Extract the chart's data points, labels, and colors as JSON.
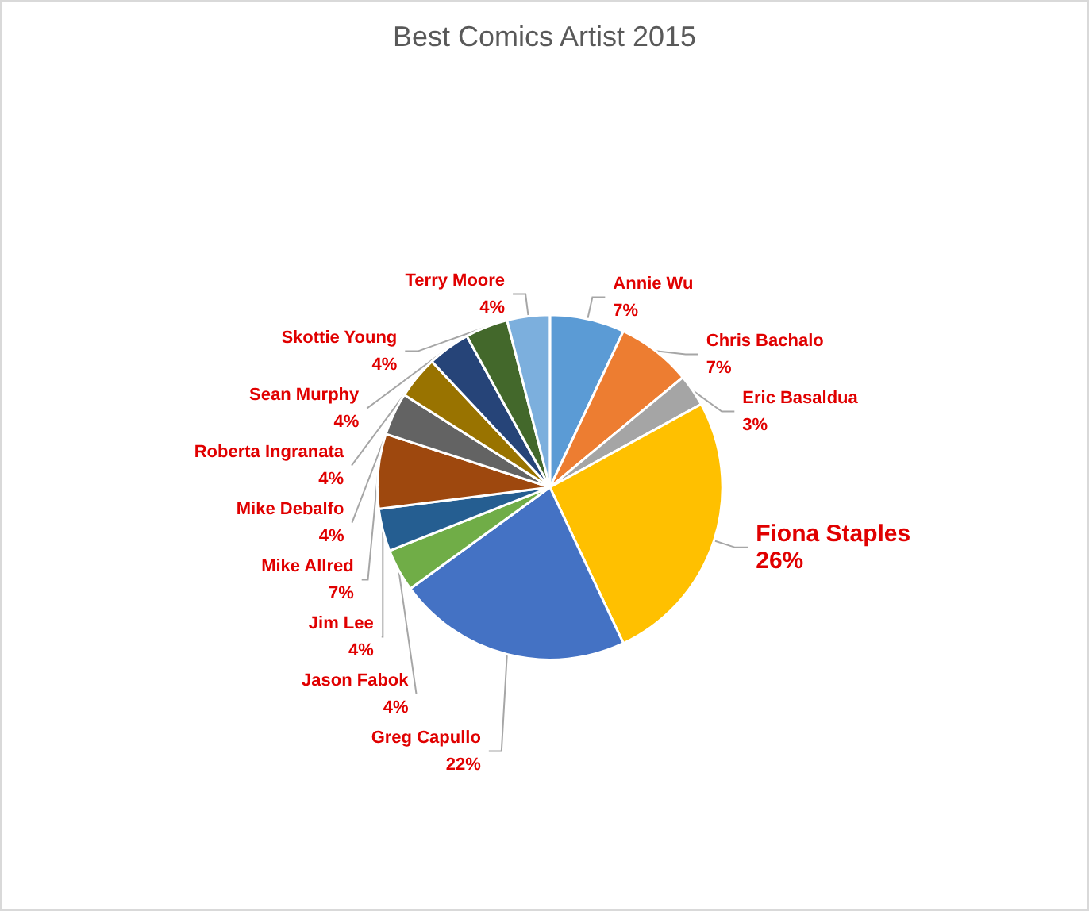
{
  "chart_data": {
    "type": "pie",
    "title": "Best Comics Artist 2015",
    "categories": [
      "Annie Wu",
      "Chris Bachalo",
      "Eric Basaldua",
      "Fiona Staples",
      "Greg Capullo",
      "Jason Fabok",
      "Jim Lee",
      "Mike Allred",
      "Mike Debalfo",
      "Roberta Ingranata",
      "Sean Murphy",
      "Skottie Young",
      "Terry Moore"
    ],
    "values": [
      7,
      7,
      3,
      26,
      22,
      4,
      4,
      7,
      4,
      4,
      4,
      4,
      4
    ],
    "value_labels": [
      "7%",
      "7%",
      "3%",
      "26%",
      "22%",
      "4%",
      "4%",
      "7%",
      "4%",
      "4%",
      "4%",
      "4%",
      "4%"
    ],
    "colors": [
      "#5b9bd5",
      "#ed7d31",
      "#a5a5a5",
      "#ffc000",
      "#4472c4",
      "#70ad47",
      "#255e91",
      "#9e480e",
      "#636363",
      "#997300",
      "#264478",
      "#43682b",
      "#7cafdd"
    ],
    "legend": false
  }
}
